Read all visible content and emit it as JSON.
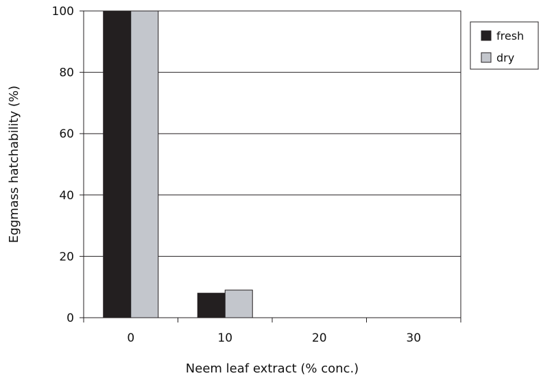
{
  "chart_data": {
    "type": "bar",
    "categories": [
      "0",
      "10",
      "20",
      "30"
    ],
    "series": [
      {
        "name": "fresh",
        "values": [
          100,
          8,
          0,
          0
        ],
        "color": "#231f20"
      },
      {
        "name": "dry",
        "values": [
          100,
          9,
          0,
          0
        ],
        "color": "#c3c6cc"
      }
    ],
    "xlabel": "Neem leaf extract (% conc.)",
    "ylabel": "Eggmass hatchability (%)",
    "ylim": [
      0,
      100
    ],
    "yticks": [
      "0",
      "20",
      "40",
      "60",
      "80",
      "100"
    ],
    "grid": true,
    "legend_position": "top-right"
  }
}
